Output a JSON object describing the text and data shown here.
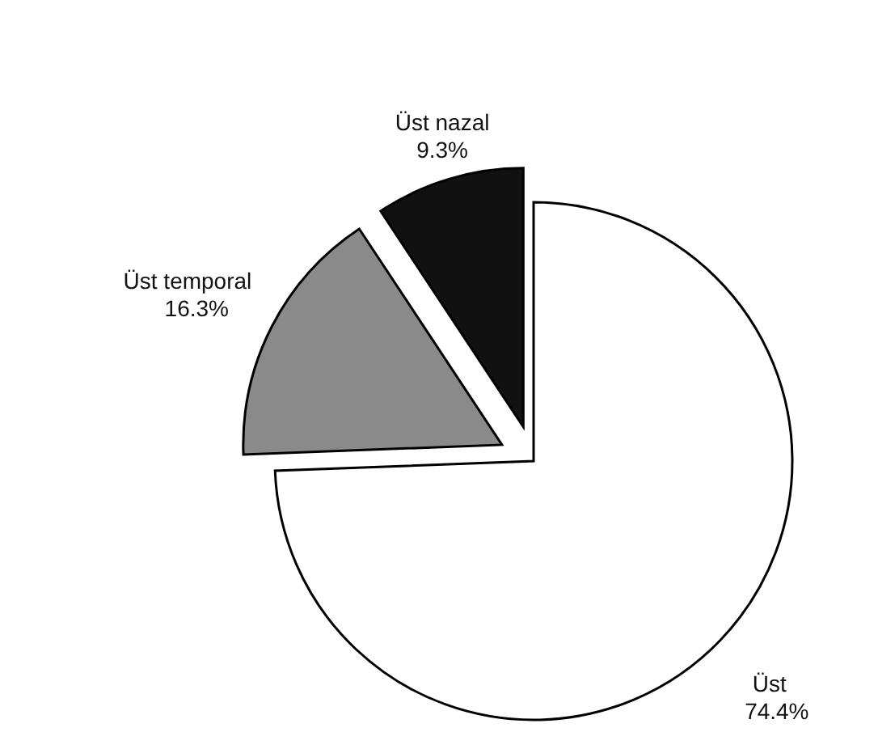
{
  "chart_data": {
    "type": "pie",
    "categories": [
      "Üst",
      "Üst temporal",
      "Üst nazal"
    ],
    "values": [
      74.4,
      16.3,
      9.3
    ],
    "colors": [
      "#ffffff",
      "#8a8a8a",
      "#111111"
    ],
    "value_labels": [
      "74.4%",
      "16.3%",
      "9.3%"
    ]
  }
}
